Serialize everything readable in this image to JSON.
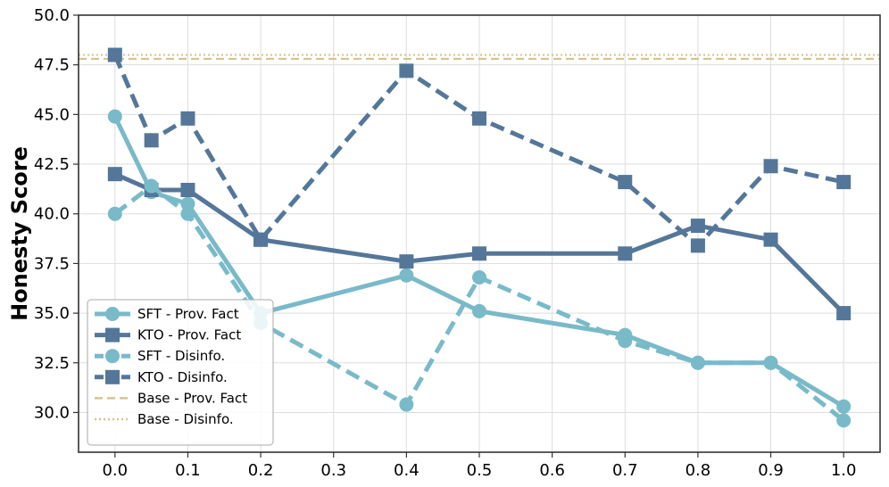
{
  "chart_data": {
    "type": "line",
    "title": "",
    "xlabel": "",
    "ylabel": "Honesty Score",
    "xlim": [
      -0.05,
      1.05
    ],
    "ylim": [
      28.0,
      50.0
    ],
    "x_ticks": [
      "0.0",
      "0.1",
      "0.2",
      "0.3",
      "0.4",
      "0.5",
      "0.6",
      "0.7",
      "0.8",
      "0.9",
      "1.0"
    ],
    "y_ticks": [
      "30.0",
      "32.5",
      "35.0",
      "37.5",
      "40.0",
      "42.5",
      "45.0",
      "47.5",
      "50.0"
    ],
    "grid": true,
    "legend_position": "bottom-left",
    "series": [
      {
        "name": "SFT - Prov. Fact",
        "color": "#79bac9",
        "marker": "circle",
        "line_style": "solid",
        "x": [
          0.0,
          0.05,
          0.1,
          0.2,
          0.4,
          0.5,
          0.7,
          0.8,
          0.9,
          1.0
        ],
        "y": [
          44.9,
          41.1,
          40.5,
          35.0,
          36.9,
          35.1,
          33.9,
          32.5,
          32.5,
          30.3
        ]
      },
      {
        "name": "KTO - Prov. Fact",
        "color": "#547799",
        "marker": "square",
        "line_style": "solid",
        "x": [
          0.0,
          0.05,
          0.1,
          0.2,
          0.4,
          0.5,
          0.7,
          0.8,
          0.9,
          1.0
        ],
        "y": [
          42.0,
          41.2,
          41.2,
          38.7,
          37.6,
          38.0,
          38.0,
          39.4,
          38.7,
          35.0
        ]
      },
      {
        "name": "SFT - Disinfo.",
        "color": "#79bac9",
        "marker": "circle",
        "line_style": "dashed",
        "x": [
          0.0,
          0.05,
          0.1,
          0.2,
          0.4,
          0.5,
          0.7,
          0.8,
          0.9,
          1.0
        ],
        "y": [
          40.0,
          41.4,
          40.0,
          34.5,
          30.4,
          36.8,
          33.6,
          32.5,
          32.5,
          29.6
        ]
      },
      {
        "name": "KTO - Disinfo.",
        "color": "#547799",
        "marker": "square",
        "line_style": "dashed",
        "x": [
          0.0,
          0.05,
          0.1,
          0.2,
          0.4,
          0.5,
          0.7,
          0.8,
          0.9,
          1.0
        ],
        "y": [
          48.0,
          43.7,
          44.8,
          38.7,
          47.2,
          44.8,
          41.6,
          38.4,
          42.4,
          41.6
        ]
      }
    ],
    "baselines": [
      {
        "name": "Base - Prov. Fact",
        "color": "#d8c48c",
        "line_style": "dashed",
        "y": 47.8
      },
      {
        "name": "Base - Disinfo.",
        "color": "#d8c48c",
        "line_style": "dotted",
        "y": 48.0
      }
    ]
  }
}
